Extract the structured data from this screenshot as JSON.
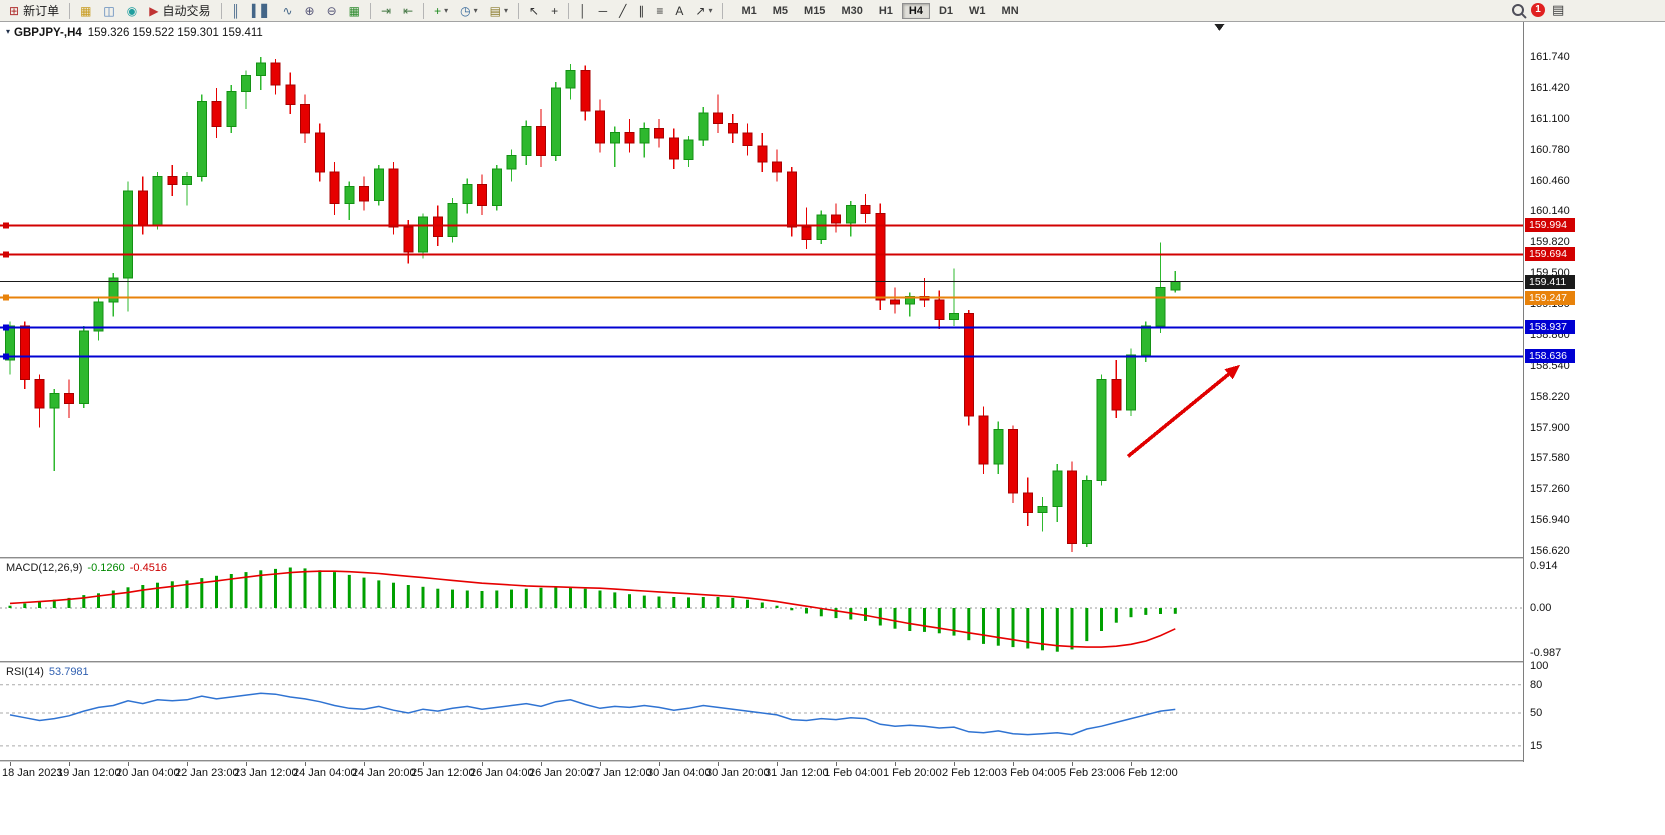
{
  "toolbar": {
    "notification_count": "1",
    "timeframes": [
      "M1",
      "M5",
      "M15",
      "M30",
      "H1",
      "H4",
      "D1",
      "W1",
      "MN"
    ],
    "active_timeframe": "H4",
    "items": [
      {
        "name": "new-order-button",
        "glyph": "⊞",
        "color": "#b03030",
        "label": "新订单"
      },
      {
        "sep": true
      },
      {
        "name": "new-chart-button",
        "glyph": "▦",
        "color": "#c89b1e"
      },
      {
        "name": "profiles-button",
        "glyph": "◫",
        "color": "#4a7ab5"
      },
      {
        "name": "market-watch-button",
        "glyph": "◉",
        "color": "#1f9e9e"
      },
      {
        "name": "auto-trading-button",
        "glyph": "▶",
        "color": "#c03434",
        "label": "自动交易"
      },
      {
        "sep": true
      },
      {
        "name": "bars-chart-button",
        "glyph": "║",
        "color": "#446688"
      },
      {
        "name": "candles-chart-button",
        "glyph": "▍▋",
        "color": "#446688"
      },
      {
        "name": "line-chart-button",
        "glyph": "∿",
        "color": "#446688"
      },
      {
        "name": "zoom-in-button",
        "glyph": "⊕",
        "color": "#555577"
      },
      {
        "name": "zoom-out-button",
        "glyph": "⊖",
        "color": "#555577"
      },
      {
        "name": "tile-windows-button",
        "glyph": "▦",
        "color": "#2e8b2e"
      },
      {
        "sep": true
      },
      {
        "name": "auto-scroll-button",
        "glyph": "⇥",
        "color": "#447744"
      },
      {
        "name": "chart-shift-button",
        "glyph": "⇤",
        "color": "#447744"
      },
      {
        "sep": true
      },
      {
        "name": "add-indicator-button",
        "glyph": "+",
        "color": "#1d8a1d",
        "dropdown": true
      },
      {
        "name": "periods-button",
        "glyph": "◷",
        "color": "#336699",
        "dropdown": true
      },
      {
        "name": "templates-button",
        "glyph": "▤",
        "color": "#8a7a2a",
        "dropdown": true
      },
      {
        "sep": true
      },
      {
        "name": "cursor-button",
        "glyph": "↖",
        "color": "#333333"
      },
      {
        "name": "crosshair-button",
        "glyph": "+",
        "color": "#333333"
      },
      {
        "sep": true
      },
      {
        "name": "vertical-line-button",
        "glyph": "│",
        "color": "#333333"
      },
      {
        "name": "horizontal-line-button",
        "glyph": "─",
        "color": "#333333"
      },
      {
        "name": "trendline-button",
        "glyph": "╱",
        "color": "#333333"
      },
      {
        "name": "channel-button",
        "glyph": "∥",
        "color": "#333333"
      },
      {
        "name": "fibonacci-button",
        "glyph": "≡",
        "color": "#333333"
      },
      {
        "name": "text-button",
        "glyph": "A",
        "color": "#333333"
      },
      {
        "name": "arrows-button",
        "glyph": "↗",
        "color": "#333333",
        "dropdown": true
      },
      {
        "sep": true
      }
    ]
  },
  "chart": {
    "symbol": "GBPJPY-,H4",
    "ohlc": "159.326 159.522 159.301 159.411",
    "expand_icon": "▾",
    "price_axis": [
      "161.740",
      "161.420",
      "161.100",
      "160.780",
      "160.460",
      "160.140",
      "159.820",
      "159.500",
      "159.180",
      "158.860",
      "158.540",
      "158.220",
      "157.900",
      "157.580",
      "157.260",
      "156.940",
      "156.620"
    ],
    "levels": [
      {
        "label": "159.994",
        "value": 159.994,
        "color": "#d20000",
        "width": 1.8,
        "handle": true
      },
      {
        "label": "159.694",
        "value": 159.694,
        "color": "#d20000",
        "width": 1.8,
        "handle": true
      },
      {
        "label": "159.411",
        "value": 159.411,
        "color": "#1a1a1a",
        "width": 1,
        "handle": false
      },
      {
        "label": "159.247",
        "value": 159.247,
        "color": "#e8820a",
        "width": 1.8,
        "handle": true
      },
      {
        "label": "158.937",
        "value": 158.937,
        "color": "#0000d2",
        "width": 1.8,
        "handle": true
      },
      {
        "label": "158.636",
        "value": 158.636,
        "color": "#0000d2",
        "width": 1.8,
        "handle": true
      }
    ],
    "arrow": {
      "from_bar": 75.8,
      "from_price": 157.6,
      "to_bar": 83.4,
      "to_price": 158.55,
      "color": "#e00000"
    },
    "shift_marker_bar": 82,
    "time_axis": [
      "18 Jan 2023",
      "19 Jan 12:00",
      "20 Jan 04:00",
      "22 Jan 23:00",
      "23 Jan 12:00",
      "24 Jan 04:00",
      "24 Jan 20:00",
      "25 Jan 12:00",
      "26 Jan 04:00",
      "26 Jan 20:00",
      "27 Jan 12:00",
      "30 Jan 04:00",
      "30 Jan 20:00",
      "31 Jan 12:00",
      "1 Feb 04:00",
      "1 Feb 20:00",
      "2 Feb 12:00",
      "3 Feb 04:00",
      "5 Feb 23:00",
      "6 Feb 12:00"
    ]
  },
  "chart_data": {
    "type": "candlestick",
    "symbol": "GBPJPY-",
    "timeframe": "H4",
    "price_range": [
      156.62,
      161.74
    ],
    "colors": {
      "up": "#2eb82e",
      "up_border": "#149114",
      "down": "#e60000",
      "down_border": "#a80000"
    },
    "ohlc": [
      [
        158.6,
        159.0,
        158.45,
        158.95
      ],
      [
        158.95,
        159.0,
        158.3,
        158.4
      ],
      [
        158.4,
        158.45,
        157.9,
        158.1
      ],
      [
        158.1,
        158.3,
        157.45,
        158.25
      ],
      [
        158.25,
        158.4,
        158.0,
        158.15
      ],
      [
        158.15,
        158.95,
        158.1,
        158.9
      ],
      [
        158.9,
        159.25,
        158.8,
        159.2
      ],
      [
        159.2,
        159.5,
        159.05,
        159.45
      ],
      [
        159.45,
        160.45,
        159.1,
        160.35
      ],
      [
        160.35,
        160.5,
        159.9,
        160.0
      ],
      [
        160.0,
        160.55,
        159.95,
        160.5
      ],
      [
        160.5,
        160.62,
        160.3,
        160.42
      ],
      [
        160.42,
        160.55,
        160.2,
        160.5
      ],
      [
        160.5,
        161.35,
        160.45,
        161.28
      ],
      [
        161.28,
        161.42,
        160.9,
        161.02
      ],
      [
        161.02,
        161.45,
        160.95,
        161.38
      ],
      [
        161.38,
        161.6,
        161.2,
        161.55
      ],
      [
        161.55,
        161.74,
        161.4,
        161.68
      ],
      [
        161.68,
        161.72,
        161.35,
        161.45
      ],
      [
        161.45,
        161.58,
        161.15,
        161.25
      ],
      [
        161.25,
        161.35,
        160.85,
        160.95
      ],
      [
        160.95,
        161.05,
        160.45,
        160.55
      ],
      [
        160.55,
        160.65,
        160.1,
        160.22
      ],
      [
        160.22,
        160.45,
        160.05,
        160.4
      ],
      [
        160.4,
        160.5,
        160.15,
        160.25
      ],
      [
        160.25,
        160.62,
        160.2,
        160.58
      ],
      [
        160.58,
        160.65,
        159.9,
        159.98
      ],
      [
        159.98,
        160.05,
        159.6,
        159.72
      ],
      [
        159.72,
        160.12,
        159.65,
        160.08
      ],
      [
        160.08,
        160.2,
        159.78,
        159.88
      ],
      [
        159.88,
        160.28,
        159.82,
        160.22
      ],
      [
        160.22,
        160.48,
        160.12,
        160.42
      ],
      [
        160.42,
        160.52,
        160.1,
        160.2
      ],
      [
        160.2,
        160.62,
        160.15,
        160.58
      ],
      [
        160.58,
        160.78,
        160.45,
        160.72
      ],
      [
        160.72,
        161.08,
        160.62,
        161.02
      ],
      [
        161.02,
        161.2,
        160.6,
        160.72
      ],
      [
        160.72,
        161.48,
        160.66,
        161.42
      ],
      [
        161.42,
        161.67,
        161.3,
        161.6
      ],
      [
        161.6,
        161.65,
        161.08,
        161.18
      ],
      [
        161.18,
        161.3,
        160.75,
        160.85
      ],
      [
        160.85,
        161.02,
        160.6,
        160.96
      ],
      [
        160.96,
        161.1,
        160.75,
        160.85
      ],
      [
        160.85,
        161.06,
        160.7,
        161.0
      ],
      [
        161.0,
        161.1,
        160.8,
        160.9
      ],
      [
        160.9,
        161.0,
        160.58,
        160.68
      ],
      [
        160.68,
        160.92,
        160.6,
        160.88
      ],
      [
        160.88,
        161.22,
        160.82,
        161.16
      ],
      [
        161.16,
        161.35,
        160.95,
        161.05
      ],
      [
        161.05,
        161.15,
        160.85,
        160.95
      ],
      [
        160.95,
        161.05,
        160.72,
        160.82
      ],
      [
        160.82,
        160.95,
        160.55,
        160.65
      ],
      [
        160.65,
        160.78,
        160.45,
        160.55
      ],
      [
        160.55,
        160.6,
        159.88,
        159.98
      ],
      [
        159.98,
        160.18,
        159.75,
        159.85
      ],
      [
        159.85,
        160.15,
        159.8,
        160.1
      ],
      [
        160.1,
        160.22,
        159.92,
        160.02
      ],
      [
        160.02,
        160.25,
        159.88,
        160.2
      ],
      [
        160.2,
        160.32,
        160.02,
        160.12
      ],
      [
        160.12,
        160.22,
        159.12,
        159.22
      ],
      [
        159.22,
        159.35,
        159.08,
        159.18
      ],
      [
        159.18,
        159.3,
        159.05,
        159.26
      ],
      [
        159.26,
        159.45,
        159.15,
        159.22
      ],
      [
        159.22,
        159.32,
        158.92,
        159.02
      ],
      [
        159.02,
        159.55,
        158.95,
        159.08
      ],
      [
        159.08,
        159.12,
        157.92,
        158.02
      ],
      [
        158.02,
        158.12,
        157.42,
        157.52
      ],
      [
        157.52,
        157.96,
        157.42,
        157.88
      ],
      [
        157.88,
        157.92,
        157.12,
        157.22
      ],
      [
        157.22,
        157.38,
        156.88,
        157.02
      ],
      [
        157.02,
        157.18,
        156.82,
        157.08
      ],
      [
        157.08,
        157.52,
        156.92,
        157.45
      ],
      [
        157.45,
        157.55,
        156.61,
        156.7
      ],
      [
        156.7,
        157.4,
        156.66,
        157.35
      ],
      [
        157.35,
        158.45,
        157.3,
        158.4
      ],
      [
        158.4,
        158.6,
        158.0,
        158.08
      ],
      [
        158.08,
        158.72,
        158.02,
        158.65
      ],
      [
        158.65,
        159.0,
        158.58,
        158.95
      ],
      [
        158.95,
        159.82,
        158.88,
        159.35
      ],
      [
        159.326,
        159.522,
        159.301,
        159.411
      ]
    ]
  },
  "macd": {
    "label": "MACD(12,26,9)",
    "value": "-0.1260",
    "signal_value": "-0.4516",
    "axis": [
      "0.914",
      "0.00",
      "-0.987"
    ],
    "colors": {
      "histogram": "#00a000",
      "signal": "#e60000"
    },
    "histogram": [
      0.05,
      0.1,
      0.15,
      0.18,
      0.22,
      0.28,
      0.32,
      0.38,
      0.45,
      0.5,
      0.55,
      0.58,
      0.6,
      0.65,
      0.7,
      0.74,
      0.78,
      0.82,
      0.85,
      0.88,
      0.86,
      0.82,
      0.78,
      0.72,
      0.66,
      0.6,
      0.55,
      0.5,
      0.46,
      0.42,
      0.4,
      0.38,
      0.37,
      0.38,
      0.4,
      0.42,
      0.44,
      0.46,
      0.45,
      0.42,
      0.38,
      0.34,
      0.3,
      0.27,
      0.25,
      0.24,
      0.23,
      0.24,
      0.24,
      0.22,
      0.18,
      0.12,
      0.05,
      -0.05,
      -0.12,
      -0.18,
      -0.22,
      -0.25,
      -0.28,
      -0.38,
      -0.45,
      -0.5,
      -0.52,
      -0.55,
      -0.6,
      -0.7,
      -0.78,
      -0.82,
      -0.85,
      -0.88,
      -0.92,
      -0.95,
      -0.9,
      -0.72,
      -0.5,
      -0.32,
      -0.2,
      -0.15,
      -0.13,
      -0.126
    ],
    "signal_line": [
      0.1,
      0.12,
      0.14,
      0.16,
      0.19,
      0.22,
      0.26,
      0.3,
      0.34,
      0.39,
      0.43,
      0.47,
      0.51,
      0.55,
      0.59,
      0.63,
      0.67,
      0.71,
      0.74,
      0.77,
      0.79,
      0.8,
      0.8,
      0.79,
      0.77,
      0.75,
      0.72,
      0.69,
      0.66,
      0.63,
      0.6,
      0.57,
      0.54,
      0.52,
      0.5,
      0.48,
      0.47,
      0.46,
      0.45,
      0.44,
      0.43,
      0.41,
      0.39,
      0.37,
      0.35,
      0.33,
      0.31,
      0.29,
      0.27,
      0.25,
      0.22,
      0.18,
      0.14,
      0.09,
      0.04,
      -0.01,
      -0.06,
      -0.11,
      -0.16,
      -0.22,
      -0.28,
      -0.34,
      -0.39,
      -0.44,
      -0.49,
      -0.54,
      -0.59,
      -0.64,
      -0.69,
      -0.74,
      -0.78,
      -0.82,
      -0.84,
      -0.85,
      -0.85,
      -0.83,
      -0.79,
      -0.72,
      -0.6,
      -0.4516
    ]
  },
  "rsi": {
    "label": "RSI(14)",
    "value": "53.7981",
    "axis": [
      "100",
      "80",
      "50",
      "15"
    ],
    "levels": [
      80,
      50,
      15
    ],
    "colors": {
      "line": "#2f73d2"
    },
    "values": [
      48,
      45,
      42,
      44,
      47,
      52,
      56,
      58,
      63,
      60,
      64,
      63,
      64,
      68,
      65,
      67,
      69,
      71,
      70,
      67,
      65,
      62,
      58,
      55,
      54,
      57,
      53,
      50,
      54,
      52,
      55,
      57,
      54,
      56,
      58,
      60,
      57,
      62,
      64,
      59,
      55,
      57,
      56,
      58,
      56,
      53,
      55,
      58,
      56,
      54,
      52,
      50,
      48,
      43,
      42,
      44,
      43,
      45,
      44,
      38,
      36,
      37,
      36,
      34,
      35,
      30,
      29,
      31,
      28,
      27,
      28,
      29,
      27,
      33,
      36,
      40,
      44,
      48,
      52,
      53.8
    ]
  }
}
